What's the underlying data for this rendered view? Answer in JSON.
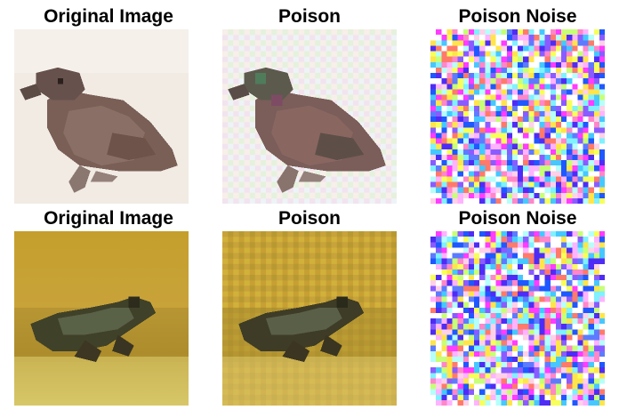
{
  "rows": [
    {
      "original_title": "Original Image",
      "poison_title": "Poison",
      "noise_title": "Poison Noise"
    },
    {
      "original_title": "Original Image",
      "poison_title": "Poison",
      "noise_title": "Poison Noise"
    }
  ]
}
